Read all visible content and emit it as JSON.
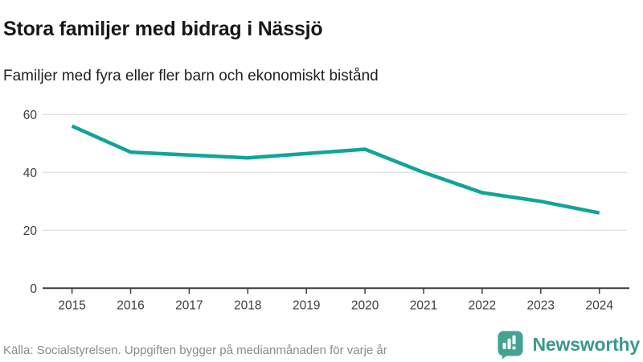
{
  "chart_data": {
    "type": "line",
    "title": "Stora familjer med bidrag i Nässjö",
    "subtitle": "Familjer med fyra eller fler barn och ekonomiskt bistånd",
    "categories": [
      "2015",
      "2016",
      "2017",
      "2018",
      "2019",
      "2020",
      "2021",
      "2022",
      "2023",
      "2024"
    ],
    "values": [
      56,
      47,
      46,
      45,
      46.5,
      48,
      40,
      33,
      30,
      26
    ],
    "xlabel": "",
    "ylabel": "",
    "ylim": [
      0,
      60
    ],
    "yticks": [
      0,
      20,
      40,
      60
    ],
    "grid": "horizontal-only",
    "legend": "none",
    "line_color": "#12a39b"
  },
  "footer": {
    "source": "Källa: Socialstyrelsen. Uppgiften bygger på medianmånaden för varje år",
    "brand": "Newsworthy",
    "brand_color": "#3a9a8c",
    "logo_icon": "speech-bubble-bar-chart-icon",
    "logo_color": "#43a392"
  }
}
